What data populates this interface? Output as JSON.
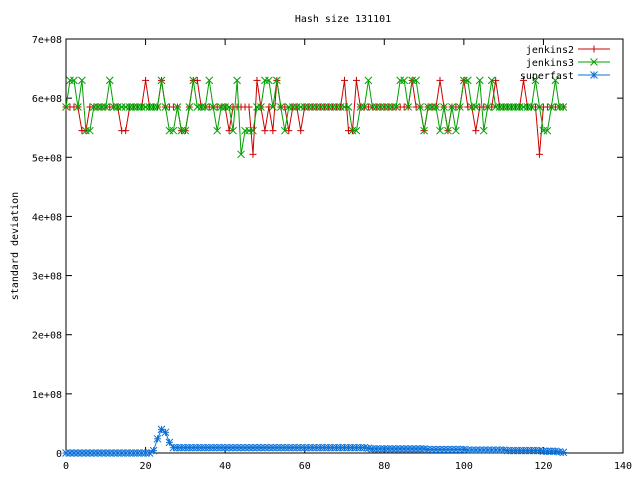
{
  "chart_data": {
    "type": "line",
    "title": "Hash size 131101",
    "xlabel": "",
    "ylabel": "standard deviation",
    "xlim": [
      0,
      140
    ],
    "ylim": [
      0,
      700000000
    ],
    "grid": false,
    "legend_position": "top-right",
    "x_ticks": [
      0,
      20,
      40,
      60,
      80,
      100,
      120,
      140
    ],
    "x_tick_labels": [
      "0",
      "20",
      "40",
      "60",
      "80",
      "100",
      "120",
      "140"
    ],
    "y_ticks": [
      0,
      100000000,
      200000000,
      300000000,
      400000000,
      500000000,
      600000000,
      700000000
    ],
    "y_tick_labels": [
      "0",
      "1e+08",
      "2e+08",
      "3e+08",
      "4e+08",
      "5e+08",
      "6e+08",
      "7e+08"
    ],
    "series": [
      {
        "name": "jenkins2",
        "color": "#cc0000",
        "marker": "plus",
        "x": [
          0,
          1,
          2,
          3,
          4,
          5,
          6,
          7,
          8,
          9,
          10,
          11,
          12,
          13,
          14,
          15,
          16,
          17,
          18,
          19,
          20,
          21,
          22,
          23,
          24,
          25,
          26,
          27,
          28,
          29,
          30,
          31,
          32,
          33,
          34,
          35,
          36,
          37,
          38,
          39,
          40,
          41,
          42,
          43,
          44,
          45,
          46,
          47,
          48,
          49,
          50,
          51,
          52,
          53,
          54,
          55,
          56,
          57,
          58,
          59,
          60,
          61,
          62,
          63,
          64,
          65,
          66,
          67,
          68,
          69,
          70,
          71,
          72,
          73,
          74,
          75,
          76,
          77,
          78,
          79,
          80,
          81,
          82,
          83,
          84,
          85,
          86,
          87,
          88,
          89,
          90,
          91,
          92,
          93,
          94,
          95,
          96,
          97,
          98,
          99,
          100,
          101,
          102,
          103,
          104,
          105,
          106,
          107,
          108,
          109,
          110,
          111,
          112,
          113,
          114,
          115,
          116,
          117,
          118,
          119,
          120,
          121,
          122,
          123,
          124,
          125
        ],
        "y": [
          585000000,
          585000000,
          585000000,
          585000000,
          545000000,
          545000000,
          585000000,
          585000000,
          585000000,
          585000000,
          585000000,
          585000000,
          585000000,
          585000000,
          545000000,
          545000000,
          585000000,
          585000000,
          585000000,
          585000000,
          630000000,
          585000000,
          585000000,
          585000000,
          630000000,
          585000000,
          585000000,
          585000000,
          585000000,
          545000000,
          545000000,
          585000000,
          630000000,
          630000000,
          585000000,
          585000000,
          585000000,
          585000000,
          585000000,
          585000000,
          585000000,
          545000000,
          585000000,
          585000000,
          585000000,
          585000000,
          585000000,
          505000000,
          630000000,
          585000000,
          545000000,
          585000000,
          545000000,
          630000000,
          585000000,
          585000000,
          545000000,
          585000000,
          585000000,
          545000000,
          585000000,
          585000000,
          585000000,
          585000000,
          585000000,
          585000000,
          585000000,
          585000000,
          585000000,
          585000000,
          630000000,
          545000000,
          545000000,
          630000000,
          585000000,
          585000000,
          585000000,
          585000000,
          585000000,
          585000000,
          585000000,
          585000000,
          585000000,
          585000000,
          585000000,
          585000000,
          585000000,
          630000000,
          585000000,
          585000000,
          545000000,
          585000000,
          585000000,
          585000000,
          630000000,
          585000000,
          545000000,
          585000000,
          585000000,
          585000000,
          630000000,
          585000000,
          585000000,
          545000000,
          585000000,
          585000000,
          585000000,
          585000000,
          630000000,
          585000000,
          585000000,
          585000000,
          585000000,
          585000000,
          585000000,
          630000000,
          585000000,
          585000000,
          585000000,
          505000000,
          585000000,
          585000000,
          585000000,
          585000000,
          585000000,
          585000000
        ]
      },
      {
        "name": "jenkins3",
        "color": "#00a000",
        "marker": "x",
        "x": [
          0,
          1,
          2,
          3,
          4,
          5,
          6,
          7,
          8,
          9,
          10,
          11,
          12,
          13,
          14,
          15,
          16,
          17,
          18,
          19,
          20,
          21,
          22,
          23,
          24,
          25,
          26,
          27,
          28,
          29,
          30,
          31,
          32,
          33,
          34,
          35,
          36,
          37,
          38,
          39,
          40,
          41,
          42,
          43,
          44,
          45,
          46,
          47,
          48,
          49,
          50,
          51,
          52,
          53,
          54,
          55,
          56,
          57,
          58,
          59,
          60,
          61,
          62,
          63,
          64,
          65,
          66,
          67,
          68,
          69,
          70,
          71,
          72,
          73,
          74,
          75,
          76,
          77,
          78,
          79,
          80,
          81,
          82,
          83,
          84,
          85,
          86,
          87,
          88,
          89,
          90,
          91,
          92,
          93,
          94,
          95,
          96,
          97,
          98,
          99,
          100,
          101,
          102,
          103,
          104,
          105,
          106,
          107,
          108,
          109,
          110,
          111,
          112,
          113,
          114,
          115,
          116,
          117,
          118,
          119,
          120,
          121,
          122,
          123,
          124,
          125
        ],
        "y": [
          585000000,
          630000000,
          630000000,
          585000000,
          630000000,
          545000000,
          545000000,
          585000000,
          585000000,
          585000000,
          585000000,
          630000000,
          585000000,
          585000000,
          585000000,
          585000000,
          585000000,
          585000000,
          585000000,
          585000000,
          585000000,
          585000000,
          585000000,
          585000000,
          630000000,
          585000000,
          545000000,
          545000000,
          585000000,
          545000000,
          545000000,
          585000000,
          630000000,
          585000000,
          585000000,
          585000000,
          630000000,
          585000000,
          545000000,
          585000000,
          585000000,
          585000000,
          545000000,
          630000000,
          505000000,
          545000000,
          545000000,
          545000000,
          585000000,
          585000000,
          630000000,
          630000000,
          585000000,
          630000000,
          585000000,
          545000000,
          585000000,
          585000000,
          585000000,
          585000000,
          585000000,
          585000000,
          585000000,
          585000000,
          585000000,
          585000000,
          585000000,
          585000000,
          585000000,
          585000000,
          585000000,
          585000000,
          545000000,
          545000000,
          585000000,
          585000000,
          630000000,
          585000000,
          585000000,
          585000000,
          585000000,
          585000000,
          585000000,
          585000000,
          630000000,
          630000000,
          585000000,
          630000000,
          630000000,
          585000000,
          545000000,
          585000000,
          585000000,
          585000000,
          545000000,
          585000000,
          545000000,
          585000000,
          545000000,
          585000000,
          630000000,
          630000000,
          585000000,
          585000000,
          630000000,
          545000000,
          585000000,
          630000000,
          585000000,
          585000000,
          585000000,
          585000000,
          585000000,
          585000000,
          585000000,
          585000000,
          585000000,
          585000000,
          630000000,
          585000000,
          545000000,
          545000000,
          585000000,
          630000000,
          585000000,
          585000000
        ]
      },
      {
        "name": "superfast",
        "color": "#0a70d8",
        "marker": "star",
        "x": [
          0,
          1,
          2,
          3,
          4,
          5,
          6,
          7,
          8,
          9,
          10,
          11,
          12,
          13,
          14,
          15,
          16,
          17,
          18,
          19,
          20,
          21,
          22,
          23,
          24,
          25,
          26,
          27,
          28,
          29,
          30,
          31,
          32,
          33,
          34,
          35,
          36,
          37,
          38,
          39,
          40,
          41,
          42,
          43,
          44,
          45,
          46,
          47,
          48,
          49,
          50,
          51,
          52,
          53,
          54,
          55,
          56,
          57,
          58,
          59,
          60,
          61,
          62,
          63,
          64,
          65,
          66,
          67,
          68,
          69,
          70,
          71,
          72,
          73,
          74,
          75,
          76,
          77,
          78,
          79,
          80,
          81,
          82,
          83,
          84,
          85,
          86,
          87,
          88,
          89,
          90,
          91,
          92,
          93,
          94,
          95,
          96,
          97,
          98,
          99,
          100,
          101,
          102,
          103,
          104,
          105,
          106,
          107,
          108,
          109,
          110,
          111,
          112,
          113,
          114,
          115,
          116,
          117,
          118,
          119,
          120,
          121,
          122,
          123,
          124,
          125
        ],
        "y": [
          0,
          0,
          0,
          0,
          0,
          0,
          0,
          0,
          0,
          0,
          0,
          0,
          0,
          0,
          0,
          0,
          0,
          0,
          0,
          0,
          0,
          0,
          4000000,
          24000000,
          40000000,
          35000000,
          18000000,
          9000000,
          9000000,
          9000000,
          9000000,
          9000000,
          9000000,
          9000000,
          9000000,
          9000000,
          9000000,
          9000000,
          9000000,
          9000000,
          9000000,
          9000000,
          9000000,
          9000000,
          9000000,
          9000000,
          9000000,
          9000000,
          9000000,
          9000000,
          9000000,
          9000000,
          9000000,
          9000000,
          9000000,
          9000000,
          9000000,
          9000000,
          9000000,
          9000000,
          9000000,
          9000000,
          9000000,
          9000000,
          9000000,
          9000000,
          9000000,
          9000000,
          9000000,
          9000000,
          9000000,
          9000000,
          9000000,
          9000000,
          9000000,
          9000000,
          8000000,
          7000000,
          7000000,
          7000000,
          7000000,
          7000000,
          7000000,
          7000000,
          7000000,
          7000000,
          7000000,
          7000000,
          7000000,
          7000000,
          7000000,
          6000000,
          6000000,
          6000000,
          6000000,
          6000000,
          6000000,
          6000000,
          6000000,
          6000000,
          6000000,
          5000000,
          5000000,
          5000000,
          5000000,
          5000000,
          5000000,
          5000000,
          5000000,
          5000000,
          5000000,
          4000000,
          4000000,
          4000000,
          4000000,
          4000000,
          4000000,
          4000000,
          4000000,
          4000000,
          3000000,
          3000000,
          3000000,
          3000000,
          2000000,
          1000000
        ]
      }
    ]
  }
}
